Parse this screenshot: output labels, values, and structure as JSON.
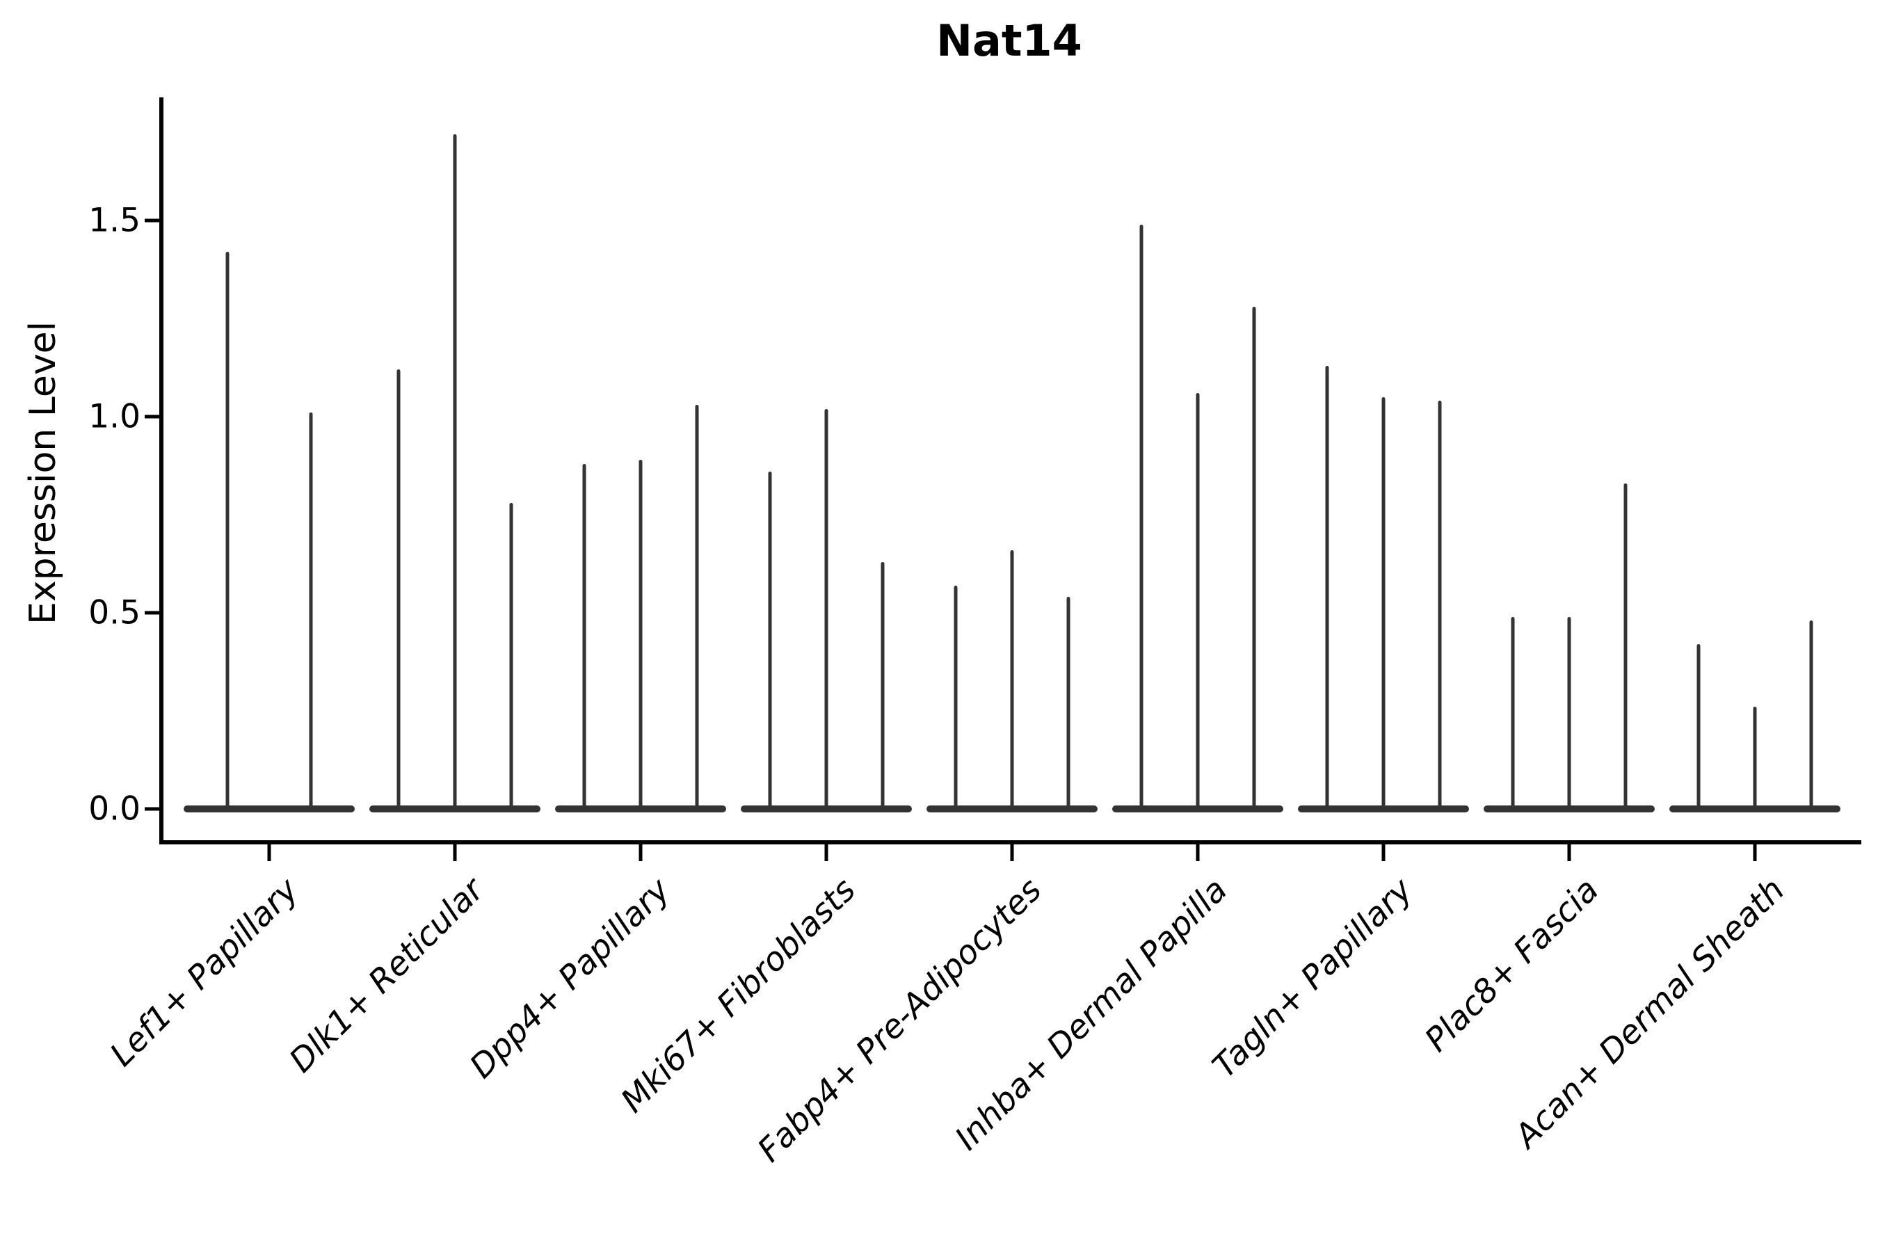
{
  "title": "Nat14",
  "ylabel": "Expression Level",
  "chart_data": {
    "type": "violin",
    "title": "Nat14",
    "ylabel": "Expression Level",
    "xlabel": "",
    "ylim": [
      -0.08,
      1.81
    ],
    "yticks": [
      {
        "value": 0.0,
        "label": "0.0"
      },
      {
        "value": 0.5,
        "label": "0.5"
      },
      {
        "value": 1.0,
        "label": "1.0"
      },
      {
        "value": 1.5,
        "label": "1.5"
      }
    ],
    "grid": false,
    "legend_position": "none",
    "violin_color": "#333333",
    "axis_color": "#000000",
    "description": "Thin spike-shaped violins; distribution mass at 0 with narrow tails up to the max expression value per violin.",
    "categories": [
      {
        "label": "Lef1+ Papillary",
        "spike_maxima": [
          1.42,
          1.01
        ]
      },
      {
        "label": "Dlk1+ Reticular",
        "spike_maxima": [
          1.12,
          1.72,
          0.78
        ]
      },
      {
        "label": "Dpp4+ Papillary",
        "spike_maxima": [
          0.88,
          0.89,
          1.03
        ]
      },
      {
        "label": "Mki67+ Fibroblasts",
        "spike_maxima": [
          0.86,
          1.02,
          0.63
        ]
      },
      {
        "label": "Fabp4+ Pre-Adipocytes",
        "spike_maxima": [
          0.57,
          0.66,
          0.54
        ]
      },
      {
        "label": "Inhba+ Dermal Papilla",
        "spike_maxima": [
          1.49,
          1.06,
          1.28
        ]
      },
      {
        "label": "Tagln+ Papillary",
        "spike_maxima": [
          1.13,
          1.05,
          1.04
        ]
      },
      {
        "label": "Plac8+ Fascia",
        "spike_maxima": [
          0.49,
          0.49,
          0.83
        ]
      },
      {
        "label": "Acan+ Dermal Sheath",
        "spike_maxima": [
          0.42,
          0.26,
          0.48
        ]
      }
    ]
  }
}
